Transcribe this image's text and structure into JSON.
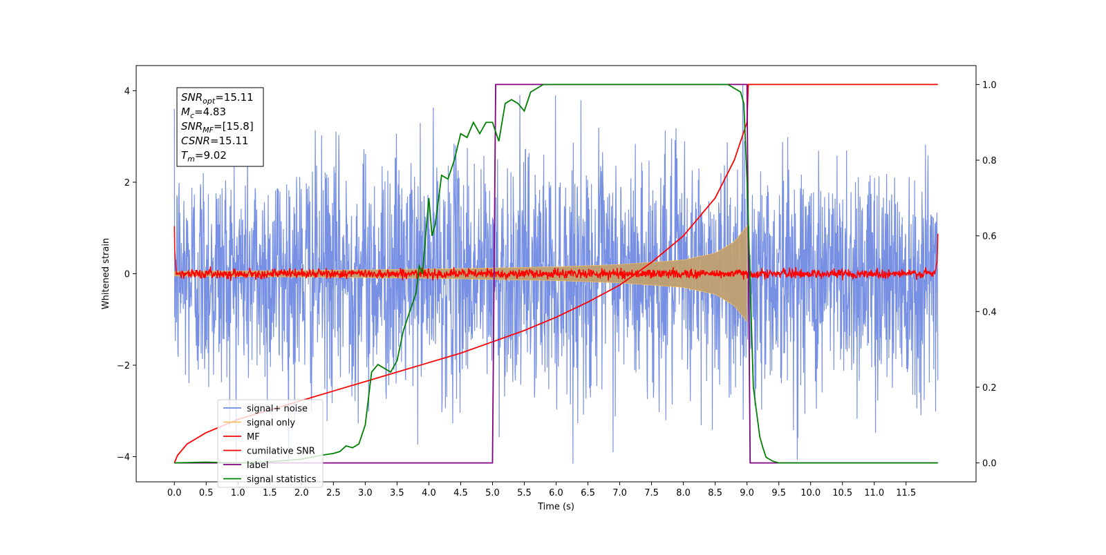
{
  "chart_data": {
    "type": "line",
    "title": "",
    "xlabel": "Time (s)",
    "ylabel": "Whitened strain",
    "ylabel_right": "",
    "xlim": [
      -0.6,
      12.6
    ],
    "ylim": [
      -4.55,
      4.55
    ],
    "ylim_right": [
      -0.05,
      1.05
    ],
    "x_ticks": [
      0,
      0.5,
      1,
      1.5,
      2,
      2.5,
      3,
      3.5,
      4,
      4.5,
      5,
      5.5,
      6,
      6.5,
      7,
      7.5,
      8,
      8.5,
      9,
      9.5,
      10,
      10.5,
      11,
      11.5
    ],
    "x_tick_labels": [
      "0.0",
      "0.5",
      "1.0",
      "1.5",
      "2.0",
      "2.5",
      "3.0",
      "3.5",
      "4.0",
      "4.5",
      "5.0",
      "5.5",
      "6.0",
      "6.5",
      "7.0",
      "7.5",
      "8.0",
      "8.5",
      "9.0",
      "9.5",
      "10.0",
      "10.5",
      "11.0",
      "11.5"
    ],
    "y_ticks": [
      -4,
      -2,
      0,
      2,
      4
    ],
    "y_tick_labels": [
      "−4",
      "−2",
      "0",
      "2",
      "4"
    ],
    "y_ticks_right": [
      0,
      0.2,
      0.4,
      0.6,
      0.8,
      1.0
    ],
    "y_tick_labels_right": [
      "0.0",
      "0.2",
      "0.4",
      "0.6",
      "0.8",
      "1.0"
    ],
    "grid": false,
    "legend_position": "lower-left",
    "annotation_box": {
      "lines": [
        {
          "sym": "SNR",
          "sub": "opt",
          "val": "=15.11"
        },
        {
          "sym": "M",
          "sub": "c",
          "val": "=4.83"
        },
        {
          "sym": "SNR",
          "sub": "MF",
          "val": "=[15.8]"
        },
        {
          "sym": "CSNR",
          "sub": "",
          "val": "=15.11"
        },
        {
          "sym": "T",
          "sub": "m",
          "val": "=9.02"
        }
      ]
    },
    "time_range": [
      0,
      12.0
    ],
    "series": [
      {
        "name": "signal+ noise",
        "axis": "left",
        "color": "#6b87e2",
        "description_stats": {
          "typical_amplitude": 1.3,
          "peak_amplitude": 4.15
        }
      },
      {
        "name": "signal only",
        "axis": "left",
        "color": "#f5c060",
        "envelope": {
          "x": [
            0,
            2,
            4,
            6,
            7,
            8,
            8.5,
            8.8,
            9.0
          ],
          "amp": [
            0.05,
            0.07,
            0.1,
            0.15,
            0.2,
            0.3,
            0.45,
            0.7,
            1.05
          ]
        }
      },
      {
        "name": "MF",
        "axis": "left",
        "color": "#ff0000",
        "description_stats": {
          "noise_level": 0.05,
          "edge_value": 1.0
        }
      },
      {
        "name": "cumilative SNR",
        "axis": "right",
        "color": "#ff0000",
        "x": [
          0,
          0.05,
          0.2,
          0.5,
          1.0,
          1.5,
          2.0,
          2.5,
          3.0,
          3.5,
          4.0,
          4.5,
          5.0,
          5.5,
          6.0,
          6.5,
          7.0,
          7.5,
          8.0,
          8.5,
          8.8,
          9.0,
          9.02,
          12.0
        ],
        "y": [
          0.0,
          0.02,
          0.05,
          0.08,
          0.115,
          0.14,
          0.165,
          0.19,
          0.215,
          0.24,
          0.265,
          0.29,
          0.32,
          0.35,
          0.385,
          0.425,
          0.47,
          0.53,
          0.6,
          0.7,
          0.8,
          0.9,
          1.0,
          1.0
        ]
      },
      {
        "name": "label",
        "axis": "right",
        "color": "#800080",
        "x": [
          0,
          5.0,
          5.05,
          9.0,
          9.05,
          12.0
        ],
        "y": [
          0,
          0,
          1,
          1,
          0,
          0
        ]
      },
      {
        "name": "signal statistics",
        "axis": "right",
        "color": "#008000",
        "x": [
          0,
          0.5,
          1.0,
          1.5,
          2.0,
          2.3,
          2.5,
          2.6,
          2.7,
          2.8,
          2.9,
          3.0,
          3.1,
          3.2,
          3.3,
          3.4,
          3.5,
          3.6,
          3.7,
          3.8,
          3.85,
          3.9,
          4.0,
          4.05,
          4.1,
          4.2,
          4.3,
          4.4,
          4.5,
          4.6,
          4.7,
          4.8,
          4.9,
          5.0,
          5.1,
          5.2,
          5.3,
          5.4,
          5.5,
          5.6,
          5.7,
          5.8,
          6.0,
          6.5,
          7.0,
          7.5,
          8.0,
          8.5,
          8.7,
          8.9,
          8.95,
          9.0,
          9.1,
          9.2,
          9.25,
          9.3,
          9.4,
          9.5,
          10.0,
          11.0,
          12.0
        ],
        "y": [
          0.0,
          0.002,
          0.0,
          0.003,
          0.01,
          0.02,
          0.025,
          0.03,
          0.045,
          0.04,
          0.05,
          0.1,
          0.24,
          0.26,
          0.25,
          0.24,
          0.27,
          0.35,
          0.4,
          0.45,
          0.52,
          0.5,
          0.7,
          0.6,
          0.63,
          0.76,
          0.75,
          0.8,
          0.87,
          0.86,
          0.9,
          0.87,
          0.9,
          0.9,
          0.85,
          0.95,
          0.96,
          0.95,
          0.93,
          0.98,
          0.99,
          1.0,
          1.0,
          1.0,
          1.0,
          1.0,
          1.0,
          1.0,
          1.0,
          0.98,
          0.95,
          0.75,
          0.2,
          0.07,
          0.04,
          0.015,
          0.005,
          0.0,
          0.0,
          0.0,
          0.0
        ]
      }
    ]
  }
}
